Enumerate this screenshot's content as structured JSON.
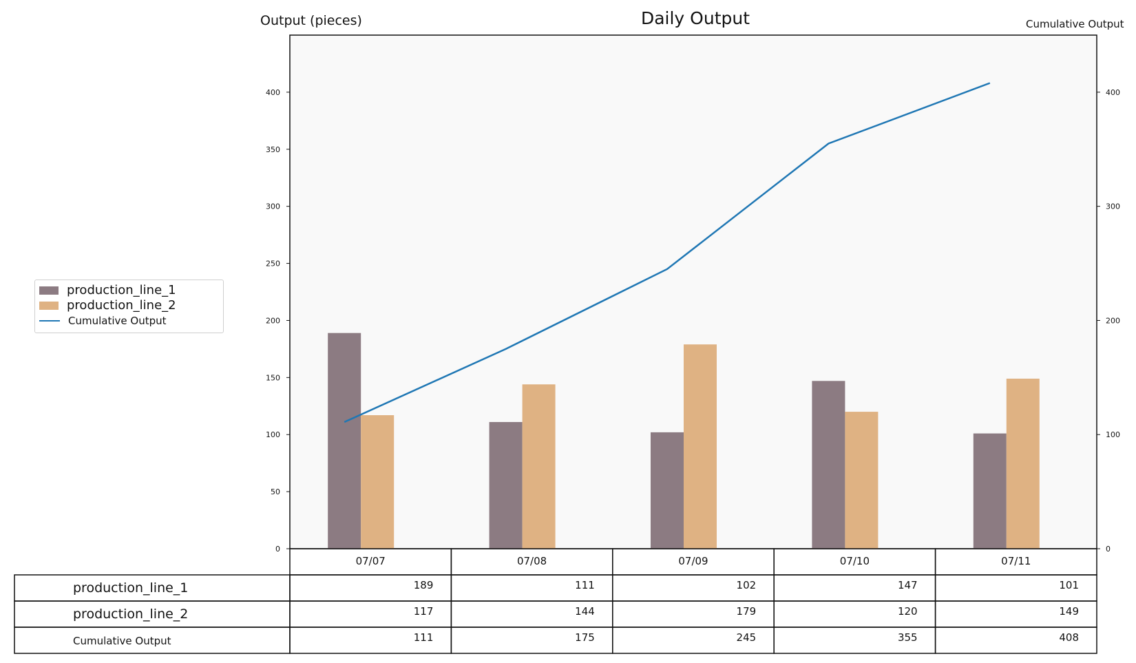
{
  "chart_data": {
    "type": "bar",
    "title": "Daily Output",
    "ylabel": "Output (pieces)",
    "y2label": "Cumulative Output",
    "categories": [
      "07/07",
      "07/08",
      "07/09",
      "07/10",
      "07/11"
    ],
    "series": [
      {
        "name": "production_line_1",
        "kind": "bar",
        "color": "#8c7b82",
        "values": [
          189,
          111,
          102,
          147,
          101
        ]
      },
      {
        "name": "production_line_2",
        "kind": "bar",
        "color": "#dfb283",
        "values": [
          117,
          144,
          179,
          120,
          149
        ]
      },
      {
        "name": "Cumulative Output",
        "kind": "line",
        "axis": "right",
        "color": "#1f77b4",
        "values": [
          111,
          175,
          245,
          355,
          408
        ]
      }
    ],
    "ylim": [
      0,
      450
    ],
    "y2lim": [
      0,
      450
    ],
    "yticks": [
      0,
      50,
      100,
      150,
      200,
      250,
      300,
      350,
      400
    ],
    "y2ticks": [
      0,
      100,
      200,
      300,
      400
    ],
    "grid": false,
    "legend_position": "left",
    "table": true,
    "plot_background": "#f9f9f9"
  }
}
